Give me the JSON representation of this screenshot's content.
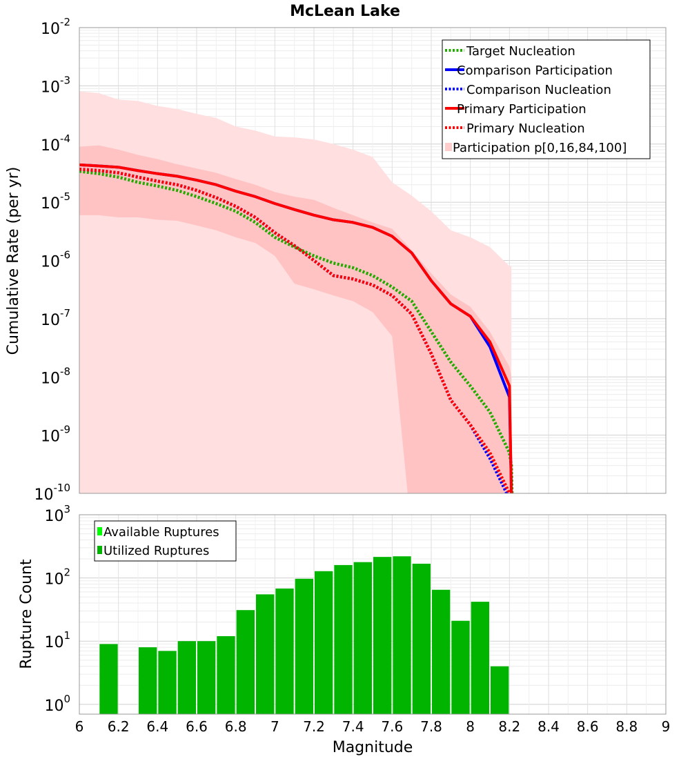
{
  "chart_data": [
    {
      "type": "line",
      "title": "McLean Lake",
      "xlabel": "",
      "ylabel": "Cumulative Rate (per yr)",
      "yscale": "log",
      "xlim": [
        6,
        9
      ],
      "ylim": [
        1e-10,
        0.01
      ],
      "ytick_labels": [
        {
          "base": "10",
          "exp": "-10"
        },
        {
          "base": "10",
          "exp": "-9"
        },
        {
          "base": "10",
          "exp": "-8"
        },
        {
          "base": "10",
          "exp": "-7"
        },
        {
          "base": "10",
          "exp": "-6"
        },
        {
          "base": "10",
          "exp": "-5"
        },
        {
          "base": "10",
          "exp": "-4"
        },
        {
          "base": "10",
          "exp": "-3"
        },
        {
          "base": "10",
          "exp": "-2"
        }
      ],
      "legend": [
        {
          "label": "Target Nucleation",
          "color": "#22aa00",
          "style": "dotted"
        },
        {
          "label": "Comparison Participation",
          "color": "#0000ff",
          "style": "solid"
        },
        {
          "label": "Comparison Nucleation",
          "color": "#0000ff",
          "style": "dotted"
        },
        {
          "label": "Primary Participation",
          "color": "#ff0000",
          "style": "solid"
        },
        {
          "label": "Primary Nucleation",
          "color": "#ff0000",
          "style": "dotted"
        },
        {
          "label": "Participation p[0,16,84,100]",
          "color": "#ffcccc",
          "style": "band"
        }
      ],
      "bands": [
        {
          "name": "p0-p100",
          "color": "#ffdfe0",
          "x": [
            6.0,
            6.1,
            6.2,
            6.3,
            6.4,
            6.5,
            6.6,
            6.7,
            6.8,
            6.9,
            7.0,
            7.1,
            7.2,
            7.3,
            7.4,
            7.5,
            7.6,
            7.7,
            7.8,
            7.9,
            8.0,
            8.1,
            8.2,
            8.21
          ],
          "upper": [
            0.0008,
            0.00075,
            0.00058,
            0.00055,
            0.00045,
            0.0004,
            0.00033,
            0.00028,
            0.0002,
            0.00017,
            0.000135,
            0.00013,
            0.00012,
            0.0001,
            8e-05,
            6e-05,
            2.2e-05,
            1.3e-05,
            7e-06,
            3.3e-06,
            2.5e-06,
            1.7e-06,
            8e-07,
            8e-07
          ],
          "lower": [
            1e-10,
            1e-10,
            1e-10,
            1e-10,
            1e-10,
            1e-10,
            1e-10,
            1e-10,
            1e-10,
            1e-10,
            1e-10,
            1e-10,
            1e-10,
            1e-10,
            1e-10,
            1e-10,
            1e-10,
            1e-10,
            1e-10,
            1e-10,
            1e-10,
            1e-10,
            1e-10,
            1e-10
          ]
        },
        {
          "name": "p16-p84",
          "color": "#ffc3c4",
          "x": [
            6.0,
            6.1,
            6.2,
            6.3,
            6.4,
            6.5,
            6.6,
            6.7,
            6.8,
            6.9,
            7.0,
            7.1,
            7.2,
            7.3,
            7.4,
            7.5,
            7.6,
            7.7,
            7.8,
            7.9,
            8.0,
            8.1,
            8.2,
            8.21
          ],
          "upper": [
            9e-05,
            9.5e-05,
            8e-05,
            6.5e-05,
            5.5e-05,
            4.5e-05,
            3.8e-05,
            3.2e-05,
            2.5e-05,
            2e-05,
            1.5e-05,
            1.25e-05,
            1.1e-05,
            8e-06,
            6e-06,
            4.5e-06,
            3.5e-06,
            1.5e-06,
            6e-07,
            2.6e-07,
            1.6e-07,
            6e-08,
            1.5e-08,
            1e-08
          ],
          "lower": [
            6e-06,
            6e-06,
            5.5e-06,
            5.5e-06,
            5e-06,
            4.8e-06,
            4e-06,
            3.3e-06,
            2.5e-06,
            2e-06,
            1.2e-06,
            4e-07,
            3.2e-07,
            2.5e-07,
            2e-07,
            1.3e-07,
            5e-08,
            2e-11,
            1e-12,
            1e-12,
            1e-12,
            1e-12,
            1e-12,
            1e-12
          ]
        }
      ],
      "series": [
        {
          "name": "Target Nucleation",
          "color": "#22aa00",
          "style": "dotted",
          "x": [
            6.0,
            6.1,
            6.2,
            6.3,
            6.4,
            6.5,
            6.6,
            6.7,
            6.8,
            6.9,
            7.0,
            7.1,
            7.2,
            7.3,
            7.4,
            7.5,
            7.6,
            7.7,
            7.8,
            7.9,
            8.0,
            8.1,
            8.2,
            8.21,
            8.22
          ],
          "y": [
            3.4e-05,
            3.1e-05,
            2.7e-05,
            2.2e-05,
            1.9e-05,
            1.6e-05,
            1.25e-05,
            9.5e-06,
            7e-06,
            4.5e-06,
            2.5e-06,
            1.7e-06,
            1.2e-06,
            9e-07,
            7.5e-07,
            5.5e-07,
            3.5e-07,
            2e-07,
            6e-08,
            1.8e-08,
            7e-09,
            2.5e-09,
            5e-10,
            3e-10,
            1e-11
          ]
        },
        {
          "name": "Comparison Participation",
          "color": "#0000ff",
          "style": "solid",
          "x": [
            6.0,
            6.1,
            6.2,
            6.3,
            6.4,
            6.5,
            6.6,
            6.7,
            6.8,
            6.9,
            7.0,
            7.1,
            7.2,
            7.3,
            7.4,
            7.5,
            7.6,
            7.7,
            7.8,
            7.9,
            8.0,
            8.1,
            8.2,
            8.21,
            8.22
          ],
          "y": [
            4.4e-05,
            4.2e-05,
            4e-05,
            3.5e-05,
            3.1e-05,
            2.8e-05,
            2.4e-05,
            2e-05,
            1.55e-05,
            1.25e-05,
            9.5e-06,
            7.5e-06,
            6e-06,
            5e-06,
            4.5e-06,
            3.7e-06,
            2.6e-06,
            1.35e-06,
            4.5e-07,
            1.8e-07,
            1.1e-07,
            3.3e-08,
            4.5e-09,
            1e-10,
            1e-11
          ]
        },
        {
          "name": "Comparison Nucleation",
          "color": "#0000ff",
          "style": "dotted",
          "x": [
            6.0,
            6.1,
            6.2,
            6.3,
            6.4,
            6.5,
            6.6,
            6.7,
            6.8,
            6.9,
            7.0,
            7.1,
            7.2,
            7.3,
            7.4,
            7.5,
            7.6,
            7.7,
            7.8,
            7.9,
            8.0,
            8.1,
            8.2,
            8.21
          ],
          "y": [
            3.7e-05,
            3.5e-05,
            3.2e-05,
            2.7e-05,
            2.3e-05,
            2e-05,
            1.6e-05,
            1.2e-05,
            8.5e-06,
            5.5e-06,
            3e-06,
            1.8e-06,
            1e-06,
            5.5e-07,
            4.8e-07,
            3.8e-07,
            2.5e-07,
            1.2e-07,
            2.5e-08,
            4e-09,
            1.5e-09,
            4e-10,
            8e-11,
            1e-11
          ]
        },
        {
          "name": "Primary Participation",
          "color": "#ff0000",
          "style": "solid",
          "x": [
            6.0,
            6.1,
            6.2,
            6.3,
            6.4,
            6.5,
            6.6,
            6.7,
            6.8,
            6.9,
            7.0,
            7.1,
            7.2,
            7.3,
            7.4,
            7.5,
            7.6,
            7.7,
            7.8,
            7.9,
            8.0,
            8.1,
            8.2,
            8.21,
            8.22
          ],
          "y": [
            4.4e-05,
            4.2e-05,
            4e-05,
            3.5e-05,
            3.1e-05,
            2.8e-05,
            2.4e-05,
            2e-05,
            1.55e-05,
            1.25e-05,
            9.5e-06,
            7.5e-06,
            6e-06,
            5e-06,
            4.5e-06,
            3.7e-06,
            2.6e-06,
            1.35e-06,
            4.5e-07,
            1.8e-07,
            1.1e-07,
            4e-08,
            7e-09,
            1e-10,
            1e-11
          ]
        },
        {
          "name": "Primary Nucleation",
          "color": "#ff0000",
          "style": "dotted",
          "x": [
            6.0,
            6.1,
            6.2,
            6.3,
            6.4,
            6.5,
            6.6,
            6.7,
            6.8,
            6.9,
            7.0,
            7.1,
            7.2,
            7.3,
            7.4,
            7.5,
            7.6,
            7.7,
            7.8,
            7.9,
            8.0,
            8.1,
            8.2,
            8.21
          ],
          "y": [
            3.7e-05,
            3.5e-05,
            3.2e-05,
            2.7e-05,
            2.3e-05,
            2e-05,
            1.6e-05,
            1.2e-05,
            8.5e-06,
            5.5e-06,
            3e-06,
            1.8e-06,
            1e-06,
            5.5e-07,
            4.8e-07,
            3.8e-07,
            2.5e-07,
            1.2e-07,
            2.5e-08,
            4e-09,
            1.5e-09,
            5e-10,
            1e-10,
            1e-11
          ]
        }
      ]
    },
    {
      "type": "bar",
      "title": "",
      "xlabel": "Magnitude",
      "ylabel": "Rupture Count",
      "yscale": "log",
      "xlim": [
        6,
        9
      ],
      "ylim": [
        0.7,
        1000
      ],
      "xtick_labels": [
        "6",
        "6.2",
        "6.4",
        "6.6",
        "6.8",
        "7",
        "7.2",
        "7.4",
        "7.6",
        "7.8",
        "8",
        "8.2",
        "8.4",
        "8.6",
        "8.8",
        "9"
      ],
      "ytick_labels": [
        {
          "base": "10",
          "exp": "0"
        },
        {
          "base": "10",
          "exp": "1"
        },
        {
          "base": "10",
          "exp": "2"
        },
        {
          "base": "10",
          "exp": "3"
        }
      ],
      "legend": [
        {
          "label": "Available Ruptures",
          "color": "#00ff00"
        },
        {
          "label": "Utilized Ruptures",
          "color": "#00b400"
        }
      ],
      "bar_color": "#00b400",
      "bin_width": 0.1,
      "x": [
        6.15,
        6.35,
        6.45,
        6.55,
        6.65,
        6.75,
        6.85,
        6.95,
        7.05,
        7.15,
        7.25,
        7.35,
        7.45,
        7.55,
        7.65,
        7.75,
        7.85,
        7.95,
        8.05,
        8.15
      ],
      "values": [
        9,
        8,
        7,
        10,
        10,
        12,
        31,
        55,
        68,
        97,
        128,
        160,
        178,
        215,
        220,
        168,
        65,
        21,
        42,
        4
      ]
    }
  ]
}
